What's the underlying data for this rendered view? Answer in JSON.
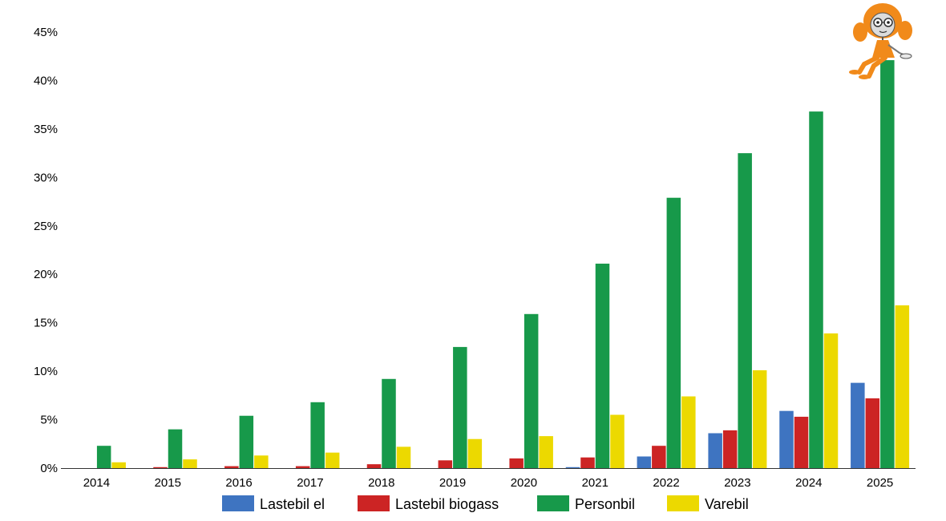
{
  "chart_data": {
    "type": "bar",
    "title": "",
    "xlabel": "",
    "ylabel": "",
    "categories": [
      "2014",
      "2015",
      "2016",
      "2017",
      "2018",
      "2019",
      "2020",
      "2021",
      "2022",
      "2023",
      "2024",
      "2025"
    ],
    "ylim": [
      0,
      45
    ],
    "yticks": [
      0,
      5,
      10,
      15,
      20,
      25,
      30,
      35,
      40,
      45
    ],
    "ytick_labels": [
      "0%",
      "5%",
      "10%",
      "15%",
      "20%",
      "25%",
      "30%",
      "35%",
      "40%",
      "45%"
    ],
    "grid": false,
    "legend_position": "bottom",
    "series": [
      {
        "name": "Lastebil el",
        "color": "#3e74c1",
        "values": [
          0,
          0,
          0,
          0,
          0,
          0,
          0,
          0.1,
          1.2,
          3.6,
          5.9,
          8.8
        ]
      },
      {
        "name": "Lastebil biogass",
        "color": "#cc2424",
        "values": [
          0,
          0.1,
          0.2,
          0.2,
          0.4,
          0.8,
          1.0,
          1.1,
          2.3,
          3.9,
          5.3,
          7.2
        ]
      },
      {
        "name": "Personbil",
        "color": "#17994a",
        "values": [
          2.3,
          4.0,
          5.4,
          6.8,
          9.2,
          12.5,
          15.9,
          21.1,
          27.9,
          32.5,
          36.8,
          42.1
        ]
      },
      {
        "name": "Varebil",
        "color": "#ecd900",
        "values": [
          0.6,
          0.9,
          1.3,
          1.6,
          2.2,
          3.0,
          3.3,
          5.5,
          7.4,
          10.1,
          13.9,
          16.8
        ]
      }
    ]
  },
  "mascot": {
    "icon": "cartoon-girl-mascot-icon"
  }
}
